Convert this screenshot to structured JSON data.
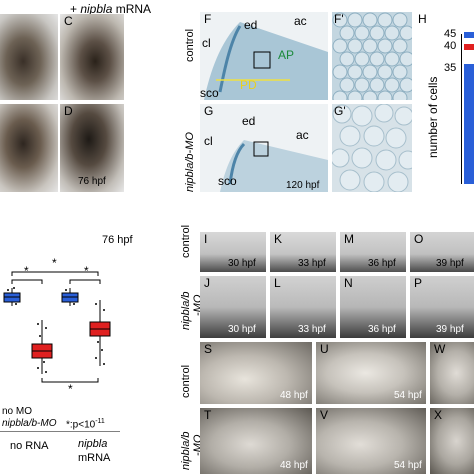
{
  "top_heading": {
    "prefix": "+ ",
    "gene": "nipbla",
    "suffix": " mRNA"
  },
  "panel_c": {
    "letter": "C"
  },
  "panel_d": {
    "letter": "D",
    "time": "76 hpf"
  },
  "panel_f": {
    "letter": "F",
    "row_label": "control",
    "cl": "cl",
    "ed": "ed",
    "ac": "ac",
    "ap": "AP",
    "pd": "PD",
    "sco": "sco"
  },
  "panel_f_prime": {
    "letter": "F'"
  },
  "panel_g": {
    "letter": "G",
    "row_label": "nipbla/b-MO",
    "cl": "cl",
    "ed": "ed",
    "ac": "ac",
    "sco": "sco",
    "time": "120 hpf"
  },
  "panel_g_prime": {
    "letter": "G'"
  },
  "panel_h": {
    "letter": "H",
    "ylabel": "number of cells",
    "ticks": [
      "45",
      "40",
      "35"
    ]
  },
  "panel_plot": {
    "time": "76 hpf",
    "star": "*",
    "legend_no_mo": "no MO",
    "legend_mo": "nipbla/b-MO",
    "legend_p": "*:p<10",
    "legend_p_exp": "-11",
    "group1": "no RNA",
    "group2_line1": "nipbla",
    "group2_line2": "mRNA"
  },
  "series_panels": {
    "row1_label": "control",
    "row2_label": "nipbla/b",
    "row2_label2": "-MO",
    "row3_label": "control",
    "row4_label": "nipbla/b",
    "row4_label2": "-MO",
    "I": {
      "letter": "I",
      "time": "30 hpf"
    },
    "K": {
      "letter": "K",
      "time": "33 hpf"
    },
    "M": {
      "letter": "M",
      "time": "36 hpf"
    },
    "O": {
      "letter": "O",
      "time": "39 hpf"
    },
    "J": {
      "letter": "J",
      "time": "30 hpf"
    },
    "L": {
      "letter": "L",
      "time": "33 hpf"
    },
    "N": {
      "letter": "N",
      "time": "36 hpf"
    },
    "P": {
      "letter": "P",
      "time": "39 hpf"
    },
    "S": {
      "letter": "S",
      "time": "48 hpf"
    },
    "U": {
      "letter": "U",
      "time": "54 hpf"
    },
    "W": {
      "letter": "W"
    },
    "T": {
      "letter": "T",
      "time": "48 hpf"
    },
    "V": {
      "letter": "V",
      "time": "54 hpf"
    },
    "X": {
      "letter": "X"
    }
  },
  "colors": {
    "no_mo": "#2a5fd8",
    "mo": "#e02020",
    "nissl_blue": "#8fb3c9"
  }
}
